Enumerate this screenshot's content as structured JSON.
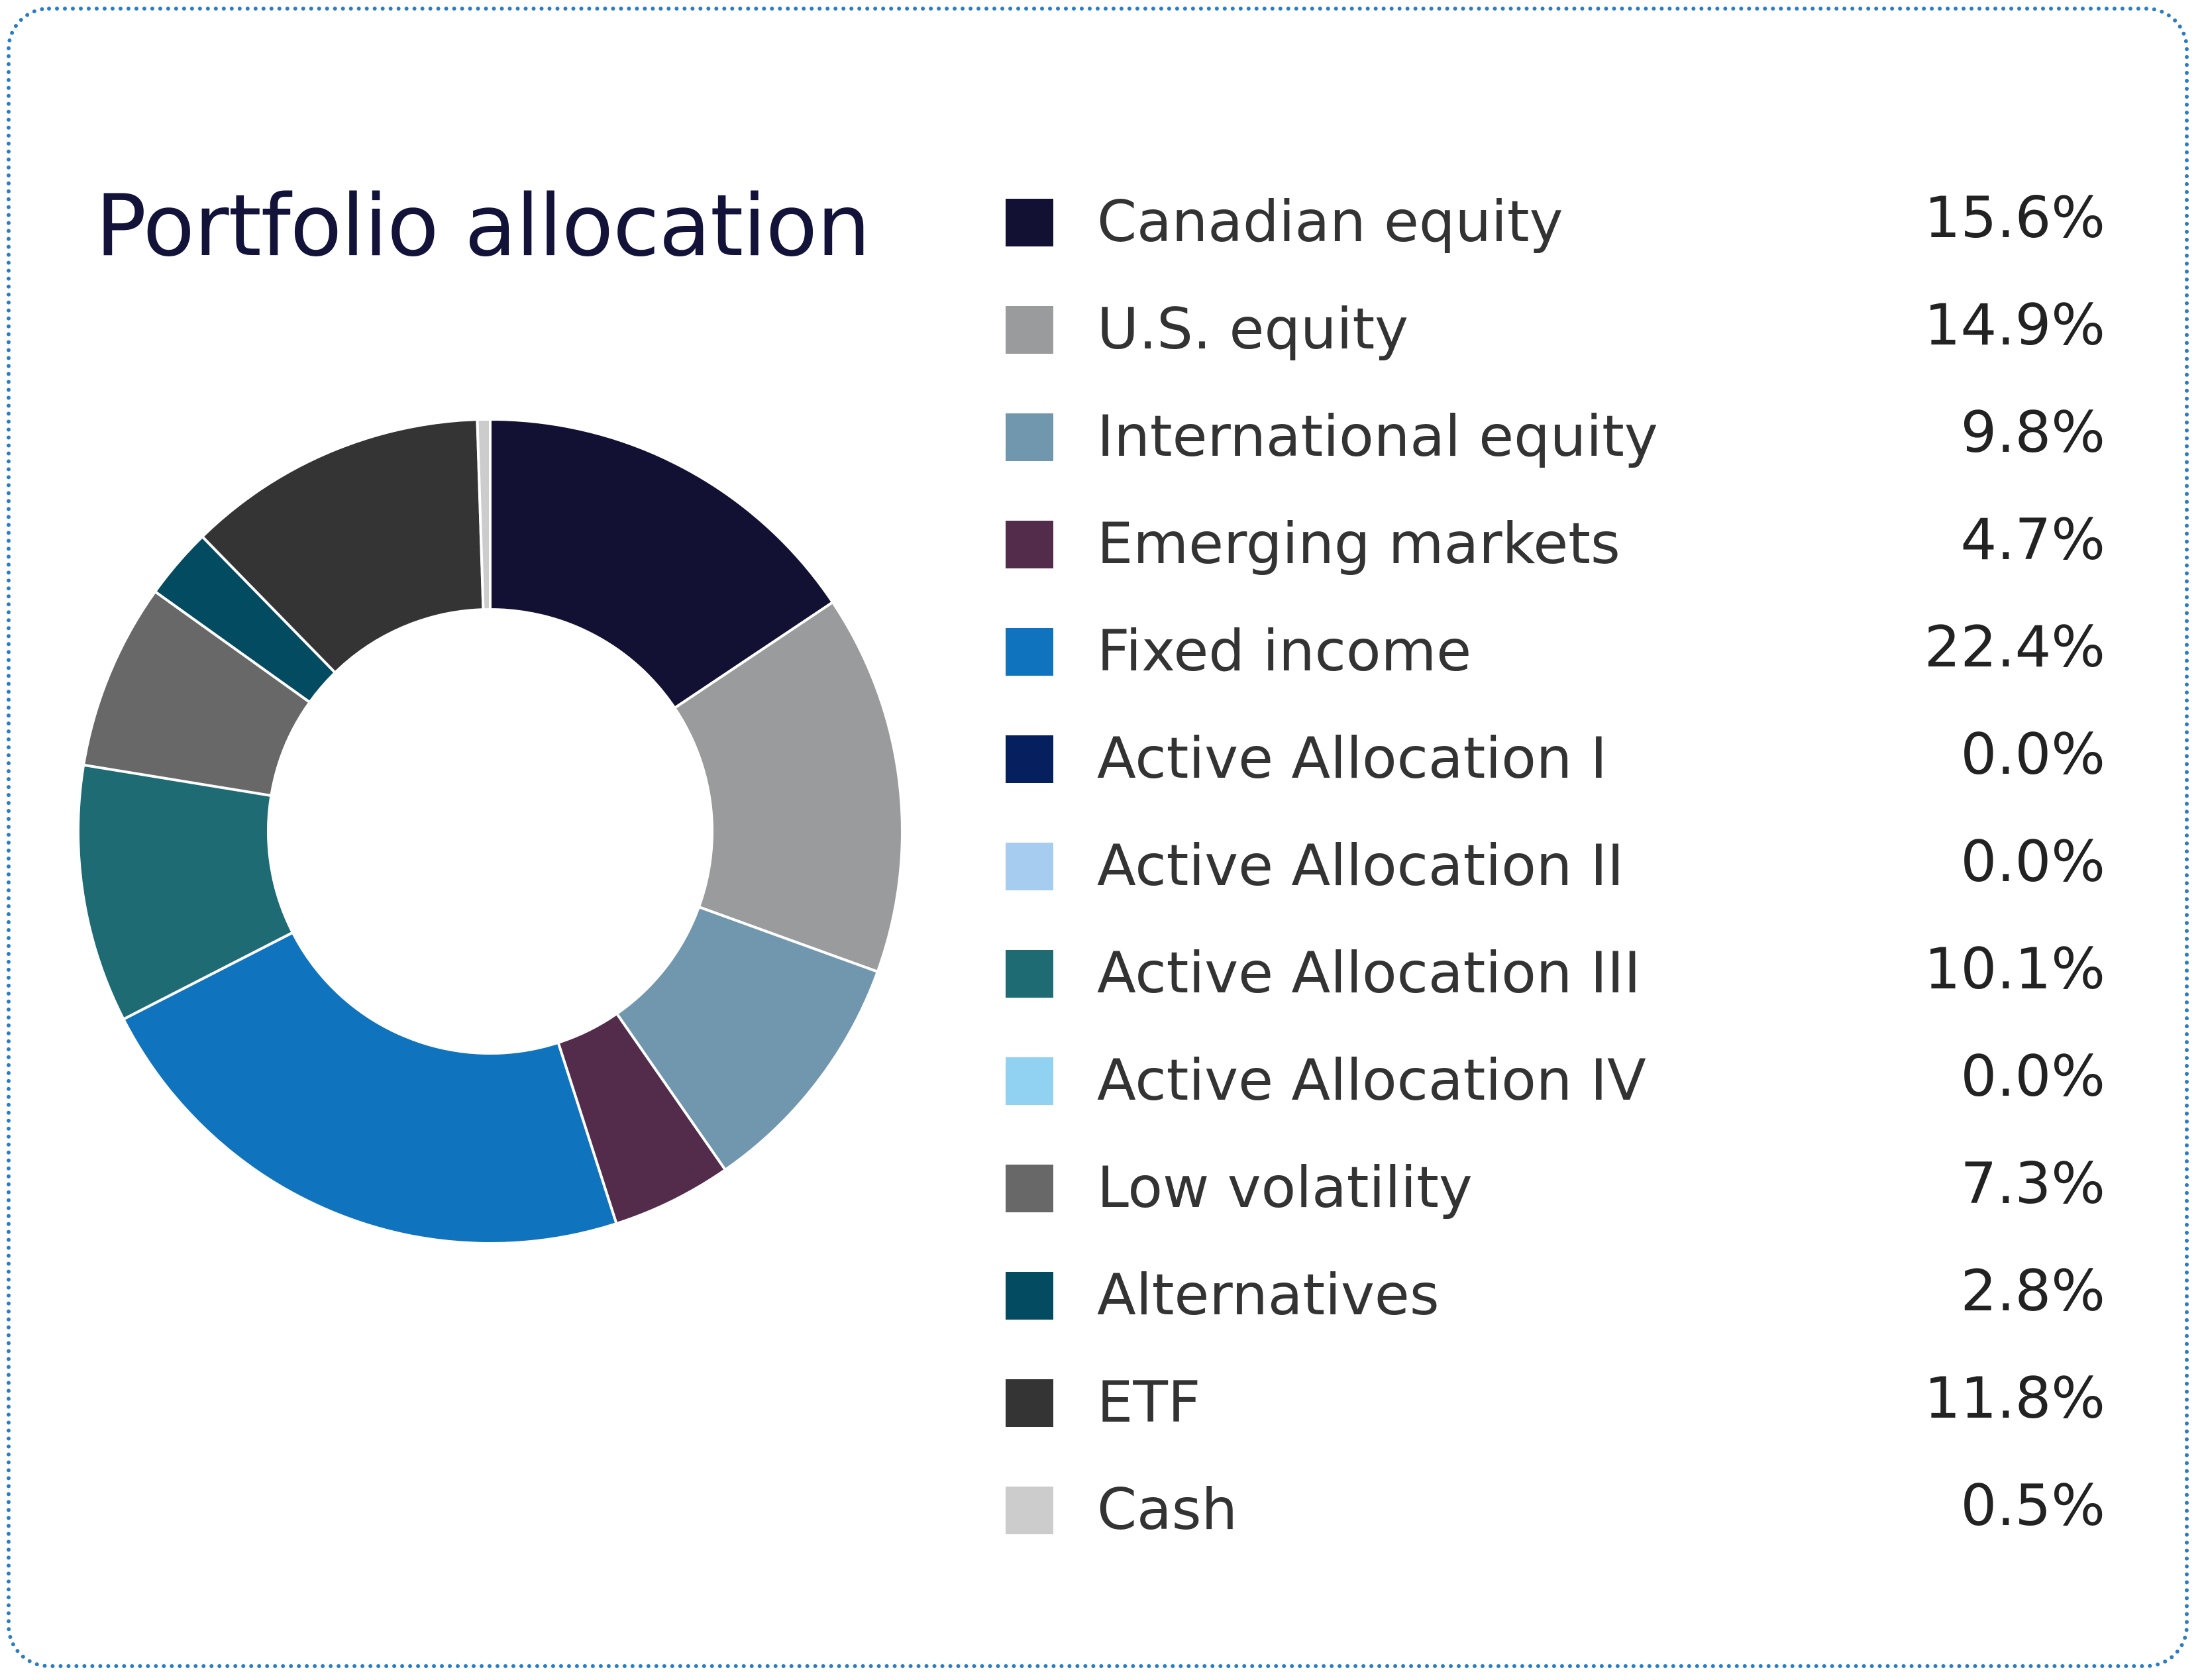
{
  "chart_data": {
    "type": "pie",
    "variant": "donut",
    "title": "Portfolio allocation",
    "legend_position": "right",
    "slices": [
      {
        "label": "Canadian equity",
        "value": 15.6,
        "display": "15.6%",
        "color": "#121133"
      },
      {
        "label": "U.S. equity",
        "value": 14.9,
        "display": "14.9%",
        "color": "#9a9b9d"
      },
      {
        "label": "International equity",
        "value": 9.8,
        "display": "9.8%",
        "color": "#7197ae"
      },
      {
        "label": "Emerging markets",
        "value": 4.7,
        "display": "4.7%",
        "color": "#522c4a"
      },
      {
        "label": "Fixed income",
        "value": 22.4,
        "display": "22.4%",
        "color": "#0f73bd"
      },
      {
        "label": "Active Allocation I",
        "value": 0.0,
        "display": "0.0%",
        "color": "#061f5e"
      },
      {
        "label": "Active Allocation II",
        "value": 0.0,
        "display": "0.0%",
        "color": "#a6cdf0"
      },
      {
        "label": "Active Allocation III",
        "value": 10.1,
        "display": "10.1%",
        "color": "#1e6b74"
      },
      {
        "label": "Active Allocation IV",
        "value": 0.0,
        "display": "0.0%",
        "color": "#91d1f1"
      },
      {
        "label": "Low volatility",
        "value": 7.3,
        "display": "7.3%",
        "color": "#686868"
      },
      {
        "label": "Alternatives",
        "value": 2.8,
        "display": "2.8%",
        "color": "#024b61"
      },
      {
        "label": "ETF",
        "value": 11.8,
        "display": "11.8%",
        "color": "#343434"
      },
      {
        "label": "Cash",
        "value": 0.5,
        "display": "0.5%",
        "color": "#cccccc"
      }
    ]
  }
}
